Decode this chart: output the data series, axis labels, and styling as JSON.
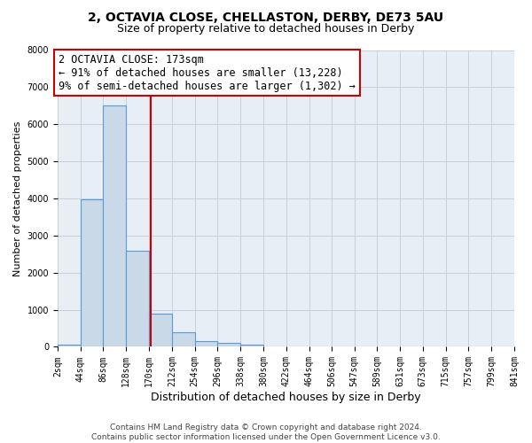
{
  "title1": "2, OCTAVIA CLOSE, CHELLASTON, DERBY, DE73 5AU",
  "title2": "Size of property relative to detached houses in Derby",
  "xlabel": "Distribution of detached houses by size in Derby",
  "ylabel": "Number of detached properties",
  "footer_line1": "Contains HM Land Registry data © Crown copyright and database right 2024.",
  "footer_line2": "Contains public sector information licensed under the Open Government Licence v3.0.",
  "property_label": "2 OCTAVIA CLOSE: 173sqm",
  "annotation_line1": "← 91% of detached houses are smaller (13,228)",
  "annotation_line2": "9% of semi-detached houses are larger (1,302) →",
  "bar_edges": [
    2,
    44,
    86,
    128,
    170,
    212,
    254,
    296,
    338,
    380,
    422,
    464,
    506,
    547,
    589,
    631,
    673,
    715,
    757,
    799,
    841
  ],
  "bar_heights": [
    50,
    3980,
    6500,
    2600,
    900,
    400,
    150,
    100,
    60,
    0,
    0,
    0,
    0,
    0,
    0,
    0,
    0,
    0,
    0,
    0
  ],
  "bar_color": "#c9d9e8",
  "bar_edgecolor": "#5b9bd5",
  "vline_x": 173,
  "vline_color": "#cc0000",
  "annotation_box_edgecolor": "#cc0000",
  "ylim": [
    0,
    8000
  ],
  "yticks": [
    0,
    1000,
    2000,
    3000,
    4000,
    5000,
    6000,
    7000,
    8000
  ],
  "grid_color": "#c8d0dc",
  "plot_bg_color": "#e8eef5",
  "title1_fontsize": 10,
  "title2_fontsize": 9,
  "annotation_fontsize": 8.5,
  "tick_label_fontsize": 7,
  "ylabel_fontsize": 8,
  "xlabel_fontsize": 9,
  "footer_fontsize": 6.5
}
